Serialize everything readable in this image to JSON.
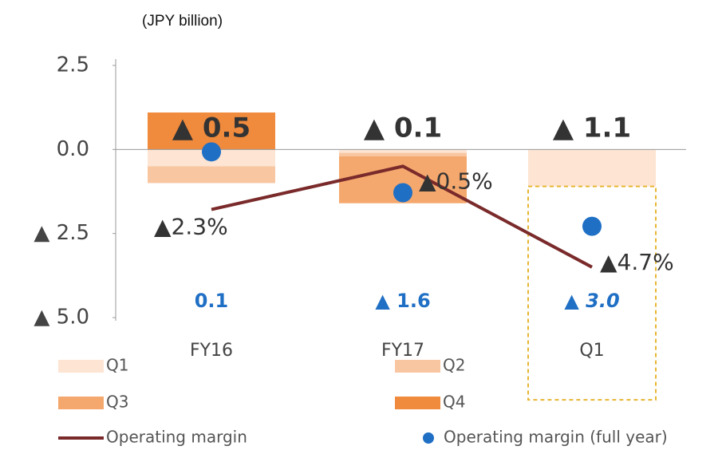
{
  "chart_data": {
    "type": "bar",
    "stacked": true,
    "unit_label": "(JPY billion)",
    "categories": [
      "FY16",
      "FY17",
      "Q1"
    ],
    "ylim": [
      -5,
      2.5
    ],
    "yticks": [
      2.5,
      {
        "value": 0,
        "label": "0.0"
      },
      {
        "value": -2.5,
        "label": "▲ 2.5"
      },
      {
        "value": -5,
        "label": "▲ 5.0"
      }
    ],
    "y2lim": [
      -6.8,
      3.7
    ],
    "series": [
      {
        "name": "Q1",
        "color": "#fde4d3",
        "values": [
          -0.5,
          -0.1,
          -1.1
        ]
      },
      {
        "name": "Q2",
        "color": "#f9c6a2",
        "values": [
          -0.5,
          -0.1,
          null
        ]
      },
      {
        "name": "Q3",
        "color": "#f5a86e",
        "values": [
          null,
          -1.4,
          null
        ]
      },
      {
        "name": "Q4",
        "color": "#f08a3c",
        "values": [
          1.1,
          null,
          null
        ]
      },
      {
        "name": "Operating margin",
        "type": "line",
        "axis": "y2",
        "color": "#7a2a2a",
        "values": [
          -2.3,
          -0.5,
          -4.7
        ],
        "value_labels": [
          "▲2.3%",
          "▲0.5%",
          "▲4.7%"
        ]
      },
      {
        "name": "Operating margin (full year)",
        "type": "scatter",
        "axis": "y2",
        "color": "#1f6fc5",
        "values": [
          0.1,
          -1.6,
          -3.0
        ],
        "value_labels": [
          "0.1",
          "▲ 1.6",
          "▲ 3.0"
        ]
      }
    ],
    "outlook": {
      "color": "#e6b735",
      "values": [
        null,
        null,
        -1.9
      ]
    },
    "bar_labels": [
      "▲ 0.5",
      "▲ 0.1",
      "▲ 1.1"
    ]
  }
}
